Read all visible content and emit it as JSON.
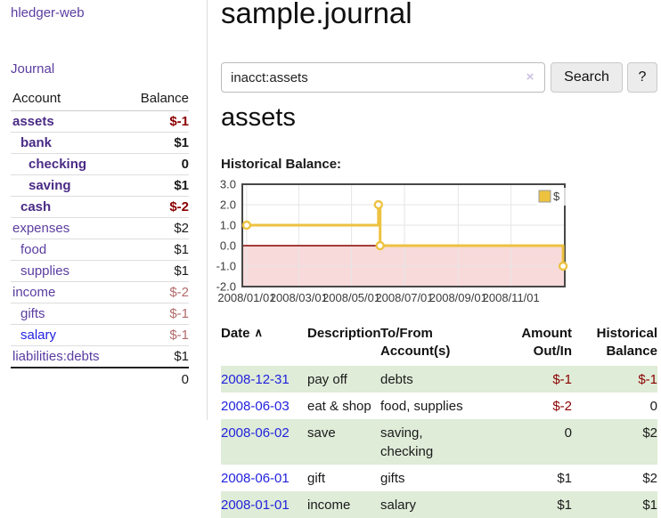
{
  "colors": {
    "accent_purple": "#5b3da0",
    "bold_purple": "#4a2b85",
    "link_blue": "#2222dd",
    "negative": "#8b0000",
    "negative_muted": "#b36b6b",
    "row_green": "#dfecd8",
    "chart_gold": "#edc240"
  },
  "sidebar": {
    "brand": "hledger-web",
    "nav": {
      "journal": "Journal"
    },
    "accounts": {
      "headers": {
        "account": "Account",
        "balance": "Balance"
      },
      "rows": [
        {
          "name": "assets",
          "balance": "$-1",
          "depth": 0,
          "bold": true,
          "balance_color": "#8b0000"
        },
        {
          "name": "bank",
          "balance": "$1",
          "depth": 1,
          "bold": true
        },
        {
          "name": "checking",
          "balance": "0",
          "depth": 2,
          "bold": true
        },
        {
          "name": "saving",
          "balance": "$1",
          "depth": 2,
          "bold": true
        },
        {
          "name": "cash",
          "balance": "$-2",
          "depth": 1,
          "bold": true,
          "balance_color": "#8b0000"
        },
        {
          "name": "expenses",
          "balance": "$2",
          "depth": 0
        },
        {
          "name": "food",
          "balance": "$1",
          "depth": 1
        },
        {
          "name": "supplies",
          "balance": "$1",
          "depth": 1
        },
        {
          "name": "income",
          "balance": "$-2",
          "depth": 0,
          "balance_color": "#b36b6b"
        },
        {
          "name": "gifts",
          "balance": "$-1",
          "depth": 1,
          "balance_color": "#b36b6b"
        },
        {
          "name": "salary",
          "balance": "$-1",
          "depth": 1,
          "balance_color": "#b36b6b",
          "name_color": "#2222e0"
        },
        {
          "name": "liabilities:debts",
          "balance": "$1",
          "depth": 0
        }
      ],
      "total": "0"
    }
  },
  "main": {
    "title": "sample.journal",
    "search": {
      "value": "inacct:assets",
      "clear_icon": "×",
      "button": "Search",
      "help": "?"
    },
    "account_heading": "assets",
    "chart_label": "Historical Balance:"
  },
  "chart_data": {
    "type": "line",
    "step": true,
    "series": [
      {
        "name": "$",
        "color": "#edc240",
        "points": [
          [
            "2008-01-01",
            1
          ],
          [
            "2008-06-01",
            2
          ],
          [
            "2008-06-03",
            0
          ],
          [
            "2008-12-31",
            -1
          ]
        ]
      }
    ],
    "x_ticks": [
      "2008/01/01",
      "2008/03/01",
      "2008/05/01",
      "2008/07/01",
      "2008/09/01",
      "2008/11/01"
    ],
    "y_ticks": [
      3,
      2,
      1,
      0,
      -1,
      -2
    ],
    "ylim": [
      -2,
      3
    ],
    "xlim": [
      "2007-12-27",
      "2009-01-02"
    ],
    "legend": {
      "label": "$",
      "position": "top-right"
    },
    "grid": true,
    "grid_color": "#e6e6e6",
    "border_color": "#474747",
    "negative_region_fill": "#f8dada",
    "zero_line_color": "#8b0000"
  },
  "register": {
    "sort_icon": "∧",
    "headers": [
      {
        "label": "Date",
        "sub": ""
      },
      {
        "label": "Description",
        "sub": ""
      },
      {
        "label": "To/From",
        "sub": "Account(s)"
      },
      {
        "label": "Amount",
        "sub": "Out/In"
      },
      {
        "label": "Historical",
        "sub": "Balance"
      }
    ],
    "rows": [
      {
        "date": "2008-12-31",
        "description": "pay off",
        "accounts": "debts",
        "amount": "$-1",
        "balance": "$-1"
      },
      {
        "date": "2008-06-03",
        "description": "eat & shop",
        "accounts": "food, supplies",
        "amount": "$-2",
        "balance": "0"
      },
      {
        "date": "2008-06-02",
        "description": "save",
        "accounts": "saving, checking",
        "amount": "0",
        "balance": "$2"
      },
      {
        "date": "2008-06-01",
        "description": "gift",
        "accounts": "gifts",
        "amount": "$1",
        "balance": "$2"
      },
      {
        "date": "2008-01-01",
        "description": "income",
        "accounts": "salary",
        "amount": "$1",
        "balance": "$1"
      }
    ]
  }
}
